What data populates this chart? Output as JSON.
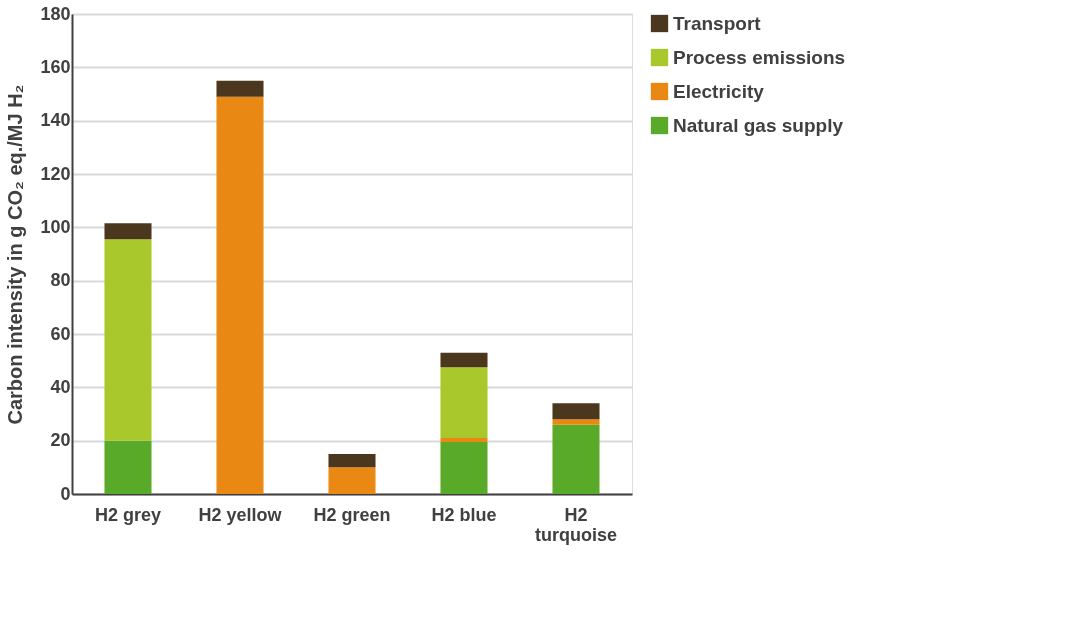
{
  "chart_data": {
    "type": "bar",
    "stacked": true,
    "ylabel": "Carbon intensity in g CO₂ eq./MJ H₂",
    "categories": [
      "H2 grey",
      "H2 yellow",
      "H2 green",
      "H2 blue",
      "H2 turquoise"
    ],
    "series": [
      {
        "name": "Natural gas supply",
        "color": "#5aaa2a",
        "values": [
          20,
          0,
          0,
          19.5,
          26
        ]
      },
      {
        "name": "Electricity",
        "color": "#e98813",
        "values": [
          0,
          149,
          10,
          1.5,
          2
        ]
      },
      {
        "name": "Process emissions",
        "color": "#a9c82b",
        "values": [
          75.5,
          0,
          0,
          26.5,
          0
        ]
      },
      {
        "name": "Transport",
        "color": "#4a371d",
        "values": [
          6,
          6,
          5,
          5.5,
          6
        ]
      }
    ],
    "ylim": [
      0,
      180
    ],
    "yticks": [
      0,
      20,
      40,
      60,
      80,
      100,
      120,
      140,
      160,
      180
    ],
    "grid": "y",
    "legend": "right"
  }
}
